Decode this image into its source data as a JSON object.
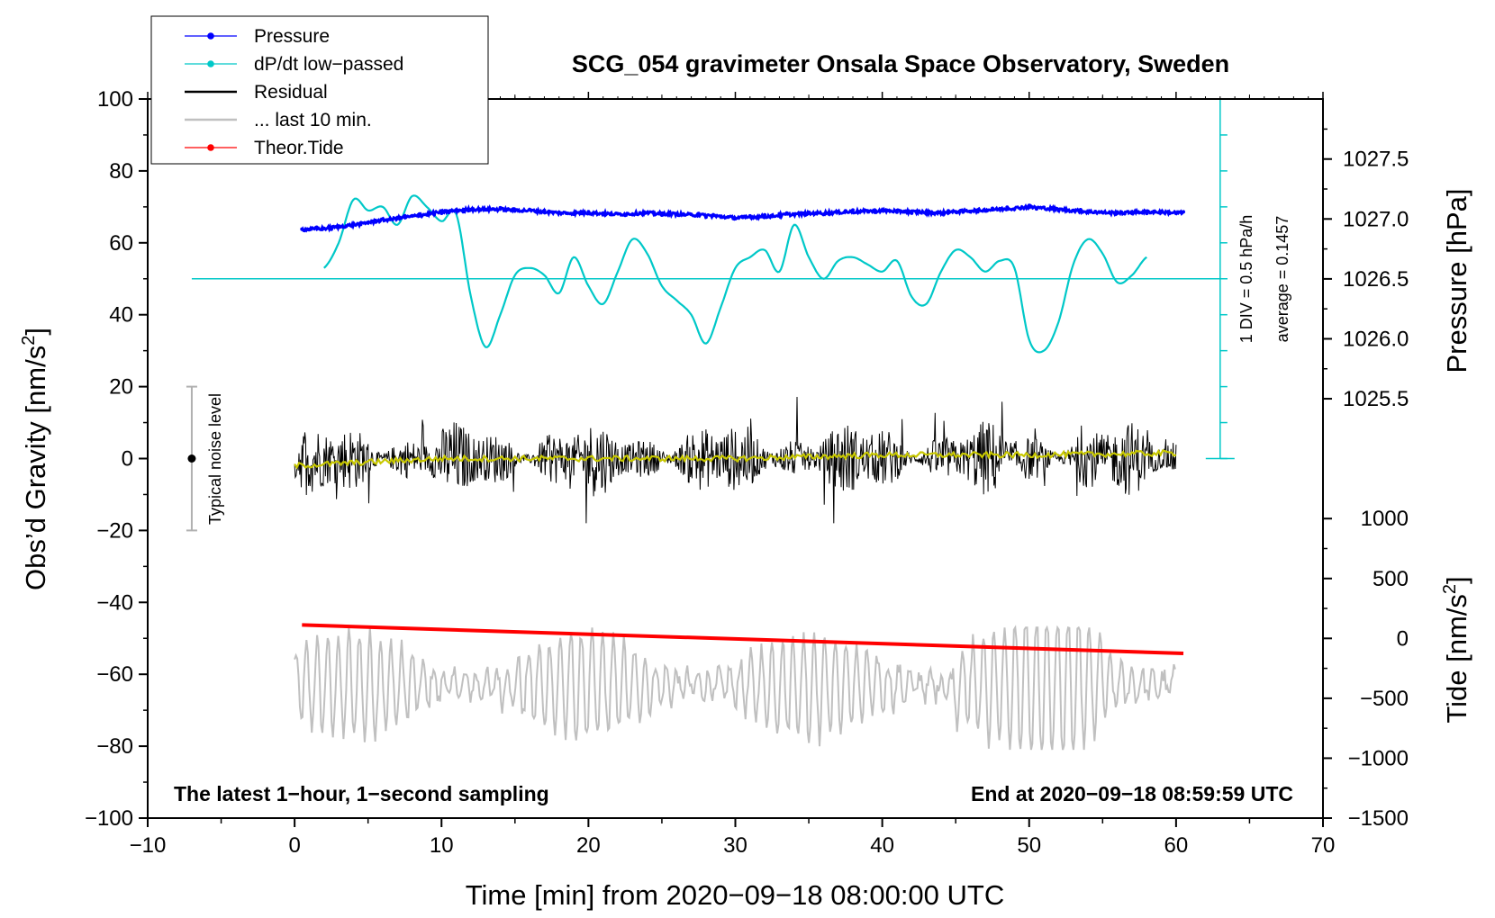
{
  "chart_data": {
    "type": "line",
    "title": "SCG_054 gravimeter Onsala Space Observatory, Sweden",
    "xlabel": "Time [min] from 2020−09−18 08:00:00 UTC",
    "xlim": [
      -10,
      70
    ],
    "x_ticks": [
      -10,
      0,
      10,
      20,
      30,
      40,
      50,
      60,
      70
    ],
    "x_tick_labels": [
      "−10",
      "0",
      "10",
      "20",
      "30",
      "40",
      "50",
      "60",
      "70"
    ],
    "left_axis": {
      "label_main": "Obs’d Gravity [nm/s",
      "label_sup": "2",
      "label_tail": "]",
      "lim": [
        -100,
        100
      ],
      "ticks": [
        100,
        80,
        60,
        40,
        20,
        0,
        -20,
        -40,
        -60,
        -80,
        -100
      ],
      "tick_labels": [
        "100",
        "80",
        "60",
        "40",
        "20",
        "0",
        "−20",
        "−40",
        "−60",
        "−80",
        "−100"
      ]
    },
    "pressure_axis": {
      "label": "Pressure [hPa]",
      "ticks": [
        1027.5,
        1027.0,
        1026.5,
        1026.0,
        1025.5
      ],
      "tick_labels": [
        "1027.5",
        "1027.0",
        "1026.5",
        "1026.0",
        "1025.5"
      ],
      "lim_at_gravity": {
        "pressure_low": 1026.0,
        "gravity_at_low": 33.3,
        "pressure_high": 1027.5,
        "gravity_at_high": 83.3
      }
    },
    "tide_axis": {
      "label_main": "Tide [nm/s",
      "label_sup": "2",
      "label_tail": "]",
      "ticks": [
        1000,
        500,
        0,
        -500,
        -1000,
        -1500
      ],
      "tick_labels": [
        "1000",
        "500",
        "0",
        "−500",
        "−1000",
        "−1500"
      ],
      "lim_at_gravity": {
        "tide_low": -1500,
        "gravity_at_low": -100,
        "tide_high": 1000,
        "gravity_at_high": -16.7
      }
    },
    "series": [
      {
        "name": "Pressure",
        "color": "#0000ff",
        "axis": "pressure",
        "style": "line+dots",
        "x": [
          0.5,
          2,
          4,
          6,
          8,
          10,
          12,
          14,
          16,
          18,
          20,
          22,
          24,
          26,
          28,
          30,
          32,
          34,
          36,
          38,
          40,
          42,
          44,
          46,
          48,
          50,
          52,
          54,
          56,
          58,
          60.5
        ],
        "values": [
          1026.91,
          1026.92,
          1026.95,
          1026.99,
          1027.02,
          1027.06,
          1027.08,
          1027.08,
          1027.07,
          1027.05,
          1027.05,
          1027.04,
          1027.05,
          1027.04,
          1027.03,
          1027.01,
          1027.02,
          1027.04,
          1027.05,
          1027.06,
          1027.07,
          1027.06,
          1027.05,
          1027.07,
          1027.08,
          1027.1,
          1027.08,
          1027.06,
          1027.05,
          1027.06,
          1027.05
        ]
      },
      {
        "name": "dP/dt low−passed",
        "color": "#00c8c8",
        "axis": "derivative",
        "style": "line",
        "baseline_gravity": 50,
        "hPa_per_h_per_gravity_unit": 0.05,
        "x": [
          2,
          3,
          4,
          5,
          6,
          7,
          8,
          9,
          10,
          11,
          12,
          13,
          14,
          15,
          16,
          17,
          18,
          19,
          20,
          21,
          22,
          23,
          24,
          25,
          26,
          27,
          28,
          29,
          30,
          31,
          32,
          33,
          34,
          35,
          36,
          37,
          38,
          39,
          40,
          41,
          42,
          43,
          44,
          45,
          46,
          47,
          48,
          49,
          50,
          51,
          52,
          53,
          54,
          55,
          56,
          57,
          58
        ],
        "values": [
          53,
          60,
          72,
          69,
          70,
          65,
          73,
          70,
          66,
          68,
          45,
          31,
          40,
          51,
          53,
          51,
          46,
          56,
          48,
          43,
          52,
          61,
          57,
          48,
          44,
          40,
          32,
          42,
          53,
          56,
          58,
          52,
          65,
          56,
          50,
          55,
          56,
          54,
          52,
          55,
          45,
          43,
          52,
          58,
          56,
          52,
          55,
          53,
          33,
          30,
          38,
          54,
          61,
          57,
          49,
          51,
          56
        ]
      },
      {
        "name": "Residual",
        "color": "#000000",
        "axis": "gravity",
        "style": "noise",
        "x_range": [
          0,
          60
        ],
        "center": 0,
        "amplitude_range": [
          -18,
          21
        ]
      },
      {
        "name": "... last 10 min.",
        "color": "#c0c0c0",
        "axis": "gravity",
        "style": "noise",
        "x_range": [
          0,
          60
        ],
        "center": -63,
        "amplitude_range": [
          -81,
          -47
        ]
      },
      {
        "name": "Theor.Tide",
        "color": "#ff0000",
        "axis": "tide",
        "style": "line",
        "x": [
          0.5,
          60.5
        ],
        "values": [
          112,
          -125
        ]
      },
      {
        "name": "Residual mean",
        "color": "#c8c800",
        "axis": "gravity",
        "style": "line",
        "x": [
          0,
          10,
          20,
          30,
          40,
          50,
          60
        ],
        "values": [
          -2,
          0,
          0,
          0,
          1,
          1,
          1.5
        ]
      }
    ],
    "legend": {
      "position": "top-left",
      "entries": [
        {
          "label": "Pressure",
          "color": "#0000ff",
          "marker": true
        },
        {
          "label": "dP/dt low−passed",
          "color": "#00c8c8",
          "marker": true
        },
        {
          "label": "Residual",
          "color": "#000000",
          "marker": false
        },
        {
          "label": "... last 10 min.",
          "color": "#c0c0c0",
          "marker": false
        },
        {
          "label": "Theor.Tide",
          "color": "#ff0000",
          "marker": true
        }
      ]
    },
    "annotations": {
      "noise_label": "Typical noise level",
      "noise_range": [
        -20,
        20
      ],
      "noise_x": -7,
      "div_label": "1 DIV = 0.5 hPa/h",
      "average_label": "average = 0.1457",
      "bottom_left": "The latest 1−hour, 1−second sampling",
      "bottom_right": "End at 2020−09−18 08:59:59 UTC"
    }
  }
}
